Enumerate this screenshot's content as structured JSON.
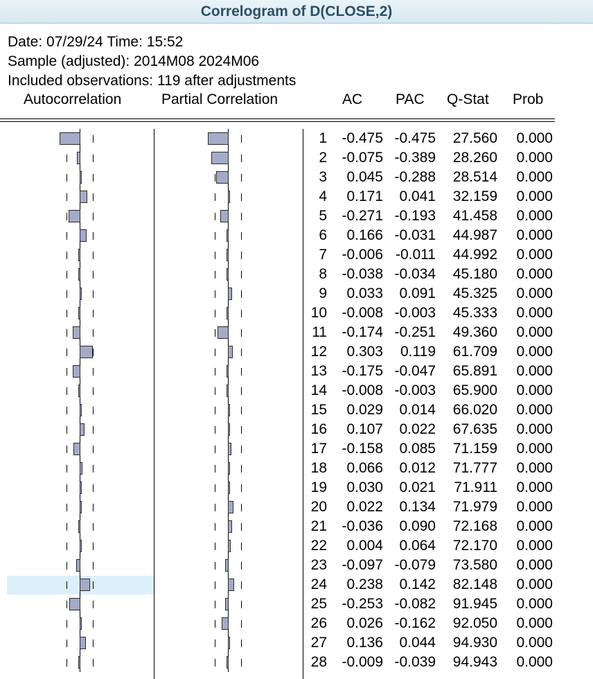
{
  "window": {
    "title": "Correlogram of D(CLOSE,2)"
  },
  "header": {
    "line1": "Date: 07/29/24   Time: 15:52",
    "line2": "Sample (adjusted): 2014M08 2024M06",
    "line3": "Included observations: 119 after adjustments"
  },
  "columns": {
    "autocorrelation": "Autocorrelation",
    "partial": "Partial Correlation",
    "ac": "AC",
    "pac": "PAC",
    "qstat": "Q-Stat",
    "prob": "Prob"
  },
  "selected_row": 24,
  "rows": [
    {
      "lag": "1",
      "ac": "-0.475",
      "pac": "-0.475",
      "q": "27.560",
      "p": "0.000"
    },
    {
      "lag": "2",
      "ac": "-0.075",
      "pac": "-0.389",
      "q": "28.260",
      "p": "0.000"
    },
    {
      "lag": "3",
      "ac": "0.045",
      "pac": "-0.288",
      "q": "28.514",
      "p": "0.000"
    },
    {
      "lag": "4",
      "ac": "0.171",
      "pac": "0.041",
      "q": "32.159",
      "p": "0.000"
    },
    {
      "lag": "5",
      "ac": "-0.271",
      "pac": "-0.193",
      "q": "41.458",
      "p": "0.000"
    },
    {
      "lag": "6",
      "ac": "0.166",
      "pac": "-0.031",
      "q": "44.987",
      "p": "0.000"
    },
    {
      "lag": "7",
      "ac": "-0.006",
      "pac": "-0.011",
      "q": "44.992",
      "p": "0.000"
    },
    {
      "lag": "8",
      "ac": "-0.038",
      "pac": "-0.034",
      "q": "45.180",
      "p": "0.000"
    },
    {
      "lag": "9",
      "ac": "0.033",
      "pac": "0.091",
      "q": "45.325",
      "p": "0.000"
    },
    {
      "lag": "10",
      "ac": "-0.008",
      "pac": "-0.003",
      "q": "45.333",
      "p": "0.000"
    },
    {
      "lag": "11",
      "ac": "-0.174",
      "pac": "-0.251",
      "q": "49.360",
      "p": "0.000"
    },
    {
      "lag": "12",
      "ac": "0.303",
      "pac": "0.119",
      "q": "61.709",
      "p": "0.000"
    },
    {
      "lag": "13",
      "ac": "-0.175",
      "pac": "-0.047",
      "q": "65.891",
      "p": "0.000"
    },
    {
      "lag": "14",
      "ac": "-0.008",
      "pac": "-0.003",
      "q": "65.900",
      "p": "0.000"
    },
    {
      "lag": "15",
      "ac": "0.029",
      "pac": "0.014",
      "q": "66.020",
      "p": "0.000"
    },
    {
      "lag": "16",
      "ac": "0.107",
      "pac": "0.022",
      "q": "67.635",
      "p": "0.000"
    },
    {
      "lag": "17",
      "ac": "-0.158",
      "pac": "0.085",
      "q": "71.159",
      "p": "0.000"
    },
    {
      "lag": "18",
      "ac": "0.066",
      "pac": "0.012",
      "q": "71.777",
      "p": "0.000"
    },
    {
      "lag": "19",
      "ac": "0.030",
      "pac": "0.021",
      "q": "71.911",
      "p": "0.000"
    },
    {
      "lag": "20",
      "ac": "0.022",
      "pac": "0.134",
      "q": "71.979",
      "p": "0.000"
    },
    {
      "lag": "21",
      "ac": "-0.036",
      "pac": "0.090",
      "q": "72.168",
      "p": "0.000"
    },
    {
      "lag": "22",
      "ac": "0.004",
      "pac": "0.064",
      "q": "72.170",
      "p": "0.000"
    },
    {
      "lag": "23",
      "ac": "-0.097",
      "pac": "-0.079",
      "q": "73.580",
      "p": "0.000"
    },
    {
      "lag": "24",
      "ac": "0.238",
      "pac": "0.142",
      "q": "82.148",
      "p": "0.000"
    },
    {
      "lag": "25",
      "ac": "-0.253",
      "pac": "-0.082",
      "q": "91.945",
      "p": "0.000"
    },
    {
      "lag": "26",
      "ac": "0.026",
      "pac": "-0.162",
      "q": "92.050",
      "p": "0.000"
    },
    {
      "lag": "27",
      "ac": "0.136",
      "pac": "0.044",
      "q": "94.930",
      "p": "0.000"
    },
    {
      "lag": "28",
      "ac": "-0.009",
      "pac": "-0.039",
      "q": "94.943",
      "p": "0.000"
    }
  ]
}
